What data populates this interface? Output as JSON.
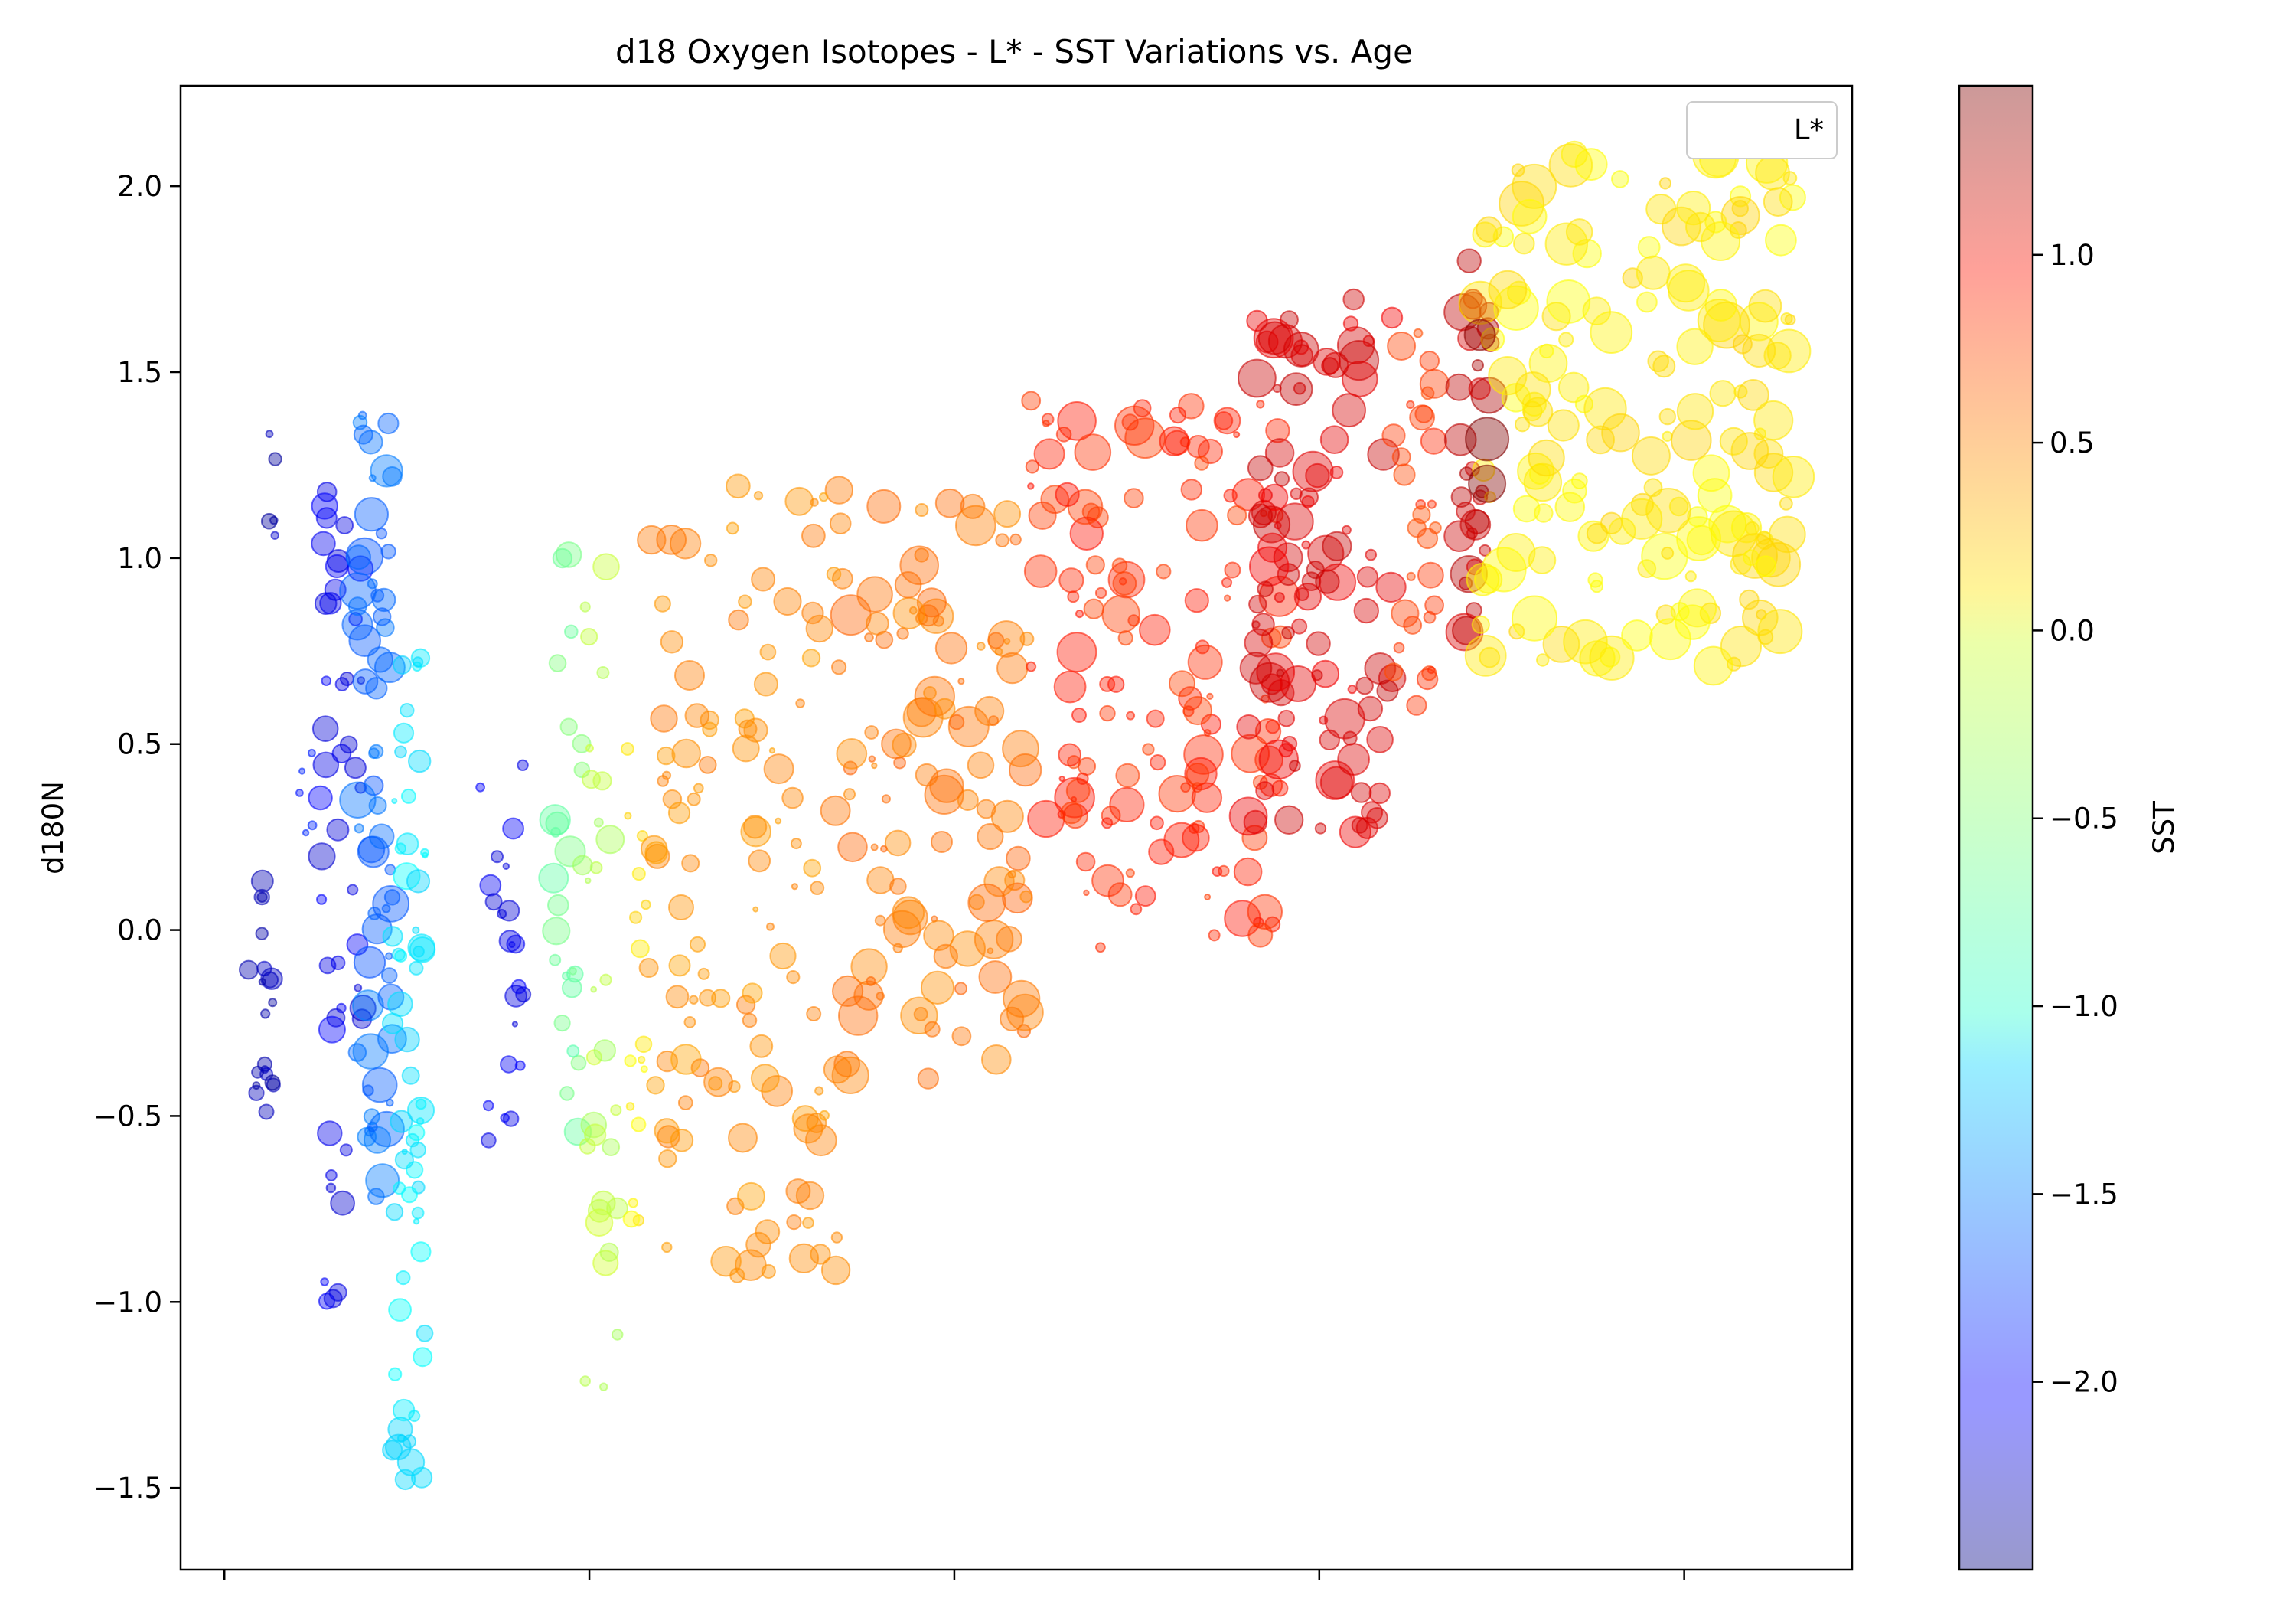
{
  "chart_data": {
    "type": "scatter",
    "title": "d18 Oxygen Isotopes - L* - SST Variations vs. Age",
    "xlabel": "",
    "ylabel": "d180N",
    "xlim": [
      -0.6,
      22.3
    ],
    "ylim": [
      -1.72,
      2.27
    ],
    "x_ticks": [
      0,
      5,
      10,
      15,
      20
    ],
    "x_tick_labels_shown": false,
    "y_ticks": [
      -1.5,
      -1.0,
      -0.5,
      0.0,
      0.5,
      1.0,
      1.5,
      2.0
    ],
    "y_tick_labels": [
      "−1.5",
      "−1.0",
      "−0.5",
      "0.0",
      "0.5",
      "1.0",
      "1.5",
      "2.0"
    ],
    "grid": false,
    "legend": {
      "entries": [
        "L*"
      ],
      "placement": "top-right"
    },
    "colorbar": {
      "label": "SST",
      "cmap": "jet",
      "alpha": 0.4,
      "range": [
        -2.5,
        1.45
      ],
      "ticks": [
        1.0,
        0.5,
        0.0,
        -0.5,
        -1.0,
        -1.5,
        -2.0
      ],
      "tick_labels": [
        "1.0",
        "0.5",
        "0.0",
        "−0.5",
        "−1.0",
        "−1.5",
        "−2.0"
      ]
    },
    "color_encodes": "SST",
    "size_encodes": "L*",
    "point_alpha": 0.4,
    "size_range": [
      1,
      30
    ],
    "clusters": [
      {
        "x_range": [
          0.3,
          0.7
        ],
        "y_range": [
          -0.5,
          0.15
        ],
        "sst": -2.3,
        "size_range": [
          3,
          14
        ],
        "n": 20
      },
      {
        "x_range": [
          0.55,
          0.7
        ],
        "y_range": [
          1.0,
          1.42
        ],
        "sst": -2.3,
        "size_range": [
          2,
          10
        ],
        "n": 5
      },
      {
        "x_range": [
          1.0,
          1.3
        ],
        "y_range": [
          0.25,
          0.5
        ],
        "sst": -1.9,
        "size_range": [
          2,
          6
        ],
        "n": 5
      },
      {
        "x_range": [
          1.3,
          1.9
        ],
        "y_range": [
          -1.0,
          1.25
        ],
        "sst": -2.1,
        "size_range": [
          4,
          18
        ],
        "n": 45
      },
      {
        "x_range": [
          1.8,
          2.3
        ],
        "y_range": [
          -0.75,
          1.4
        ],
        "sst": -1.6,
        "size_range": [
          4,
          24
        ],
        "n": 60
      },
      {
        "x_range": [
          2.3,
          2.75
        ],
        "y_range": [
          -1.55,
          0.8
        ],
        "sst": -1.1,
        "size_range": [
          3,
          18
        ],
        "n": 60
      },
      {
        "x_range": [
          3.5,
          4.1
        ],
        "y_range": [
          -0.6,
          0.65
        ],
        "sst": -2.1,
        "size_range": [
          3,
          14
        ],
        "n": 22
      },
      {
        "x_range": [
          4.5,
          4.9
        ],
        "y_range": [
          -0.55,
          1.05
        ],
        "sst": -0.6,
        "size_range": [
          4,
          20
        ],
        "n": 24
      },
      {
        "x_range": [
          4.9,
          5.4
        ],
        "y_range": [
          -1.5,
          1.0
        ],
        "sst": -0.3,
        "size_range": [
          3,
          18
        ],
        "n": 30
      },
      {
        "x_range": [
          5.5,
          5.8
        ],
        "y_range": [
          -0.95,
          0.55
        ],
        "sst": 0.05,
        "size_range": [
          3,
          12
        ],
        "n": 16
      },
      {
        "x_range": [
          5.8,
          8.5
        ],
        "y_range": [
          -0.95,
          1.2
        ],
        "sst": 0.42,
        "size_range": [
          3,
          20
        ],
        "n": 120
      },
      {
        "x_range": [
          8.5,
          11.0
        ],
        "y_range": [
          -0.4,
          1.15
        ],
        "sst": 0.5,
        "size_range": [
          3,
          26
        ],
        "n": 110
      },
      {
        "x_range": [
          11.0,
          14.5
        ],
        "y_range": [
          -0.05,
          1.45
        ],
        "sst": 0.8,
        "size_range": [
          3,
          26
        ],
        "n": 140
      },
      {
        "x_range": [
          14.0,
          16.0
        ],
        "y_range": [
          0.25,
          1.7
        ],
        "sst": 1.1,
        "size_range": [
          4,
          26
        ],
        "n": 110
      },
      {
        "x_range": [
          16.0,
          16.6
        ],
        "y_range": [
          0.6,
          1.7
        ],
        "sst": 0.75,
        "size_range": [
          4,
          20
        ],
        "n": 30
      },
      {
        "x_range": [
          16.9,
          17.4
        ],
        "y_range": [
          0.8,
          1.8
        ],
        "sst": 1.2,
        "size_range": [
          6,
          24
        ],
        "n": 30
      },
      {
        "x_range": [
          17.2,
          21.5
        ],
        "y_range": [
          0.7,
          2.1
        ],
        "sst": 0.05,
        "size_range": [
          6,
          30
        ],
        "n": 170
      }
    ],
    "highlighted_points": [
      {
        "x": 17.3,
        "y": 1.32,
        "sst": 1.45,
        "size": 28
      },
      {
        "x": 17.3,
        "y": 1.2,
        "sst": 1.45,
        "size": 24
      },
      {
        "x": 17.2,
        "y": 1.6,
        "sst": 1.4,
        "size": 20
      }
    ]
  }
}
